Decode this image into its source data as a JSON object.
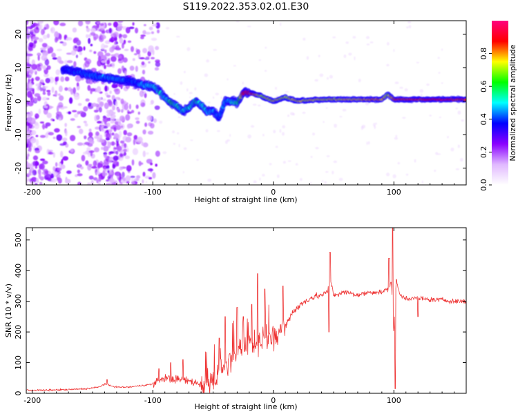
{
  "title": "S119.2022.353.02.01.E30",
  "chart_data": [
    {
      "type": "heatmap",
      "xlabel": "Height of straight line (km)",
      "ylabel": "Frequency (Hz)",
      "xlim": [
        -205,
        160
      ],
      "ylim": [
        -25,
        24
      ],
      "x_ticks": [
        -200,
        -100,
        0,
        100
      ],
      "y_ticks": [
        -20,
        -10,
        0,
        10,
        20
      ],
      "colorbar": {
        "label": "Normalized spectral amplitude",
        "range": [
          0,
          1
        ],
        "ticks": [
          0,
          0.2,
          0.4,
          0.6,
          0.8
        ],
        "tick_labels": [
          "0.0",
          "0.2",
          "0.4",
          "0.6",
          "0.8"
        ],
        "colors": [
          "#ffffff",
          "#e0b8ff",
          "#8a00ff",
          "#0000ff",
          "#00ffff",
          "#00ff00",
          "#ffff00",
          "#ff0000",
          "#ff007f"
        ]
      },
      "ridge": {
        "name": "dominant frequency",
        "x": [
          -175,
          -160,
          -150,
          -140,
          -130,
          -120,
          -110,
          -100,
          -95,
          -90,
          -85,
          -80,
          -75,
          -70,
          -65,
          -60,
          -55,
          -50,
          -45,
          -40,
          -35,
          -30,
          -25,
          -20,
          -10,
          0,
          10,
          20,
          40,
          60,
          80,
          90,
          95,
          100,
          120,
          140,
          160
        ],
        "y": [
          9.5,
          8.5,
          7.5,
          7,
          6.5,
          6,
          5,
          4.5,
          3,
          1,
          -0.5,
          -1.5,
          -3,
          -2,
          0,
          -1,
          -3,
          -3,
          -5,
          0,
          0,
          -0.5,
          2.5,
          2.5,
          1.5,
          0,
          1.2,
          0,
          0.5,
          0.5,
          0.5,
          0.5,
          2,
          0.5,
          0.5,
          0.5,
          0.5
        ],
        "amplitude": [
          0.35,
          0.4,
          0.45,
          0.45,
          0.45,
          0.4,
          0.45,
          0.5,
          0.55,
          0.5,
          0.6,
          0.55,
          0.5,
          0.55,
          0.55,
          0.5,
          0.5,
          0.45,
          0.4,
          0.45,
          0.5,
          0.55,
          0.9,
          0.9,
          0.7,
          0.75,
          0.7,
          0.75,
          0.75,
          0.75,
          0.8,
          0.8,
          0.7,
          0.85,
          0.85,
          0.9,
          0.85
        ]
      }
    },
    {
      "type": "line",
      "xlabel": "Height of straight line (km)",
      "ylabel": "SNR (10 * v/v)",
      "xlim": [
        -205,
        160
      ],
      "ylim": [
        0,
        540
      ],
      "x_ticks": [
        -200,
        -100,
        0,
        100
      ],
      "y_ticks": [
        0,
        100,
        200,
        300,
        400,
        500
      ],
      "color": "#ee3333",
      "series": [
        {
          "x": [
            -205,
            -190,
            -170,
            -155,
            -145,
            -140,
            -130,
            -120,
            -110,
            -100,
            -90,
            -80,
            -70,
            -60,
            -50,
            -40,
            -35,
            -30,
            -25,
            -20,
            -15,
            -10,
            -5,
            0,
            5,
            10,
            15,
            20,
            30,
            40,
            45,
            47,
            50,
            60,
            70,
            80,
            90,
            95,
            98,
            100,
            102,
            105,
            110,
            120,
            130,
            140,
            150,
            160
          ],
          "y": [
            10,
            10,
            12,
            15,
            20,
            30,
            20,
            20,
            25,
            30,
            50,
            45,
            40,
            30,
            40,
            80,
            110,
            140,
            150,
            170,
            150,
            180,
            180,
            180,
            200,
            220,
            260,
            280,
            310,
            320,
            330,
            380,
            320,
            330,
            320,
            330,
            330,
            340,
            360,
            200,
            370,
            320,
            310,
            310,
            305,
            305,
            300,
            300
          ],
          "spikes": [
            {
              "x": -138,
              "y": 45
            },
            {
              "x": -95,
              "y": 80
            },
            {
              "x": -85,
              "y": 100
            },
            {
              "x": -75,
              "y": 110
            },
            {
              "x": -45,
              "y": 180
            },
            {
              "x": -40,
              "y": 250
            },
            {
              "x": -30,
              "y": 280
            },
            {
              "x": -25,
              "y": 250
            },
            {
              "x": -18,
              "y": 290
            },
            {
              "x": -13,
              "y": 390
            },
            {
              "x": -7,
              "y": 340
            },
            {
              "x": 8,
              "y": 350
            },
            {
              "x": 47,
              "y": 460
            },
            {
              "x": 46,
              "y": 200
            },
            {
              "x": 99,
              "y": 545
            },
            {
              "x": 101,
              "y": 15
            },
            {
              "x": 96,
              "y": 440
            },
            {
              "x": 120,
              "y": 250
            }
          ]
        }
      ]
    }
  ]
}
